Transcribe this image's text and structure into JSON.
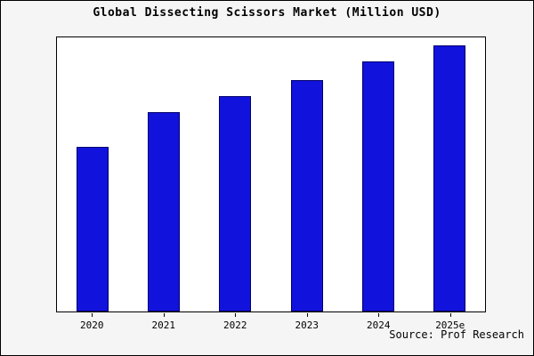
{
  "chart_data": {
    "type": "bar",
    "title": "Global Dissecting Scissors Market (Million USD)",
    "categories": [
      "2020",
      "2021",
      "2022",
      "2023",
      "2024",
      "2025e"
    ],
    "values": [
      62,
      75,
      81,
      87,
      94,
      100
    ],
    "ylim": [
      0,
      103
    ],
    "xlabel": "",
    "ylabel": "",
    "grid": false,
    "legend": "none",
    "bar_color": "#1212dd",
    "bar_border_color": "#00006a"
  },
  "source_note": "Source: Prof Research"
}
